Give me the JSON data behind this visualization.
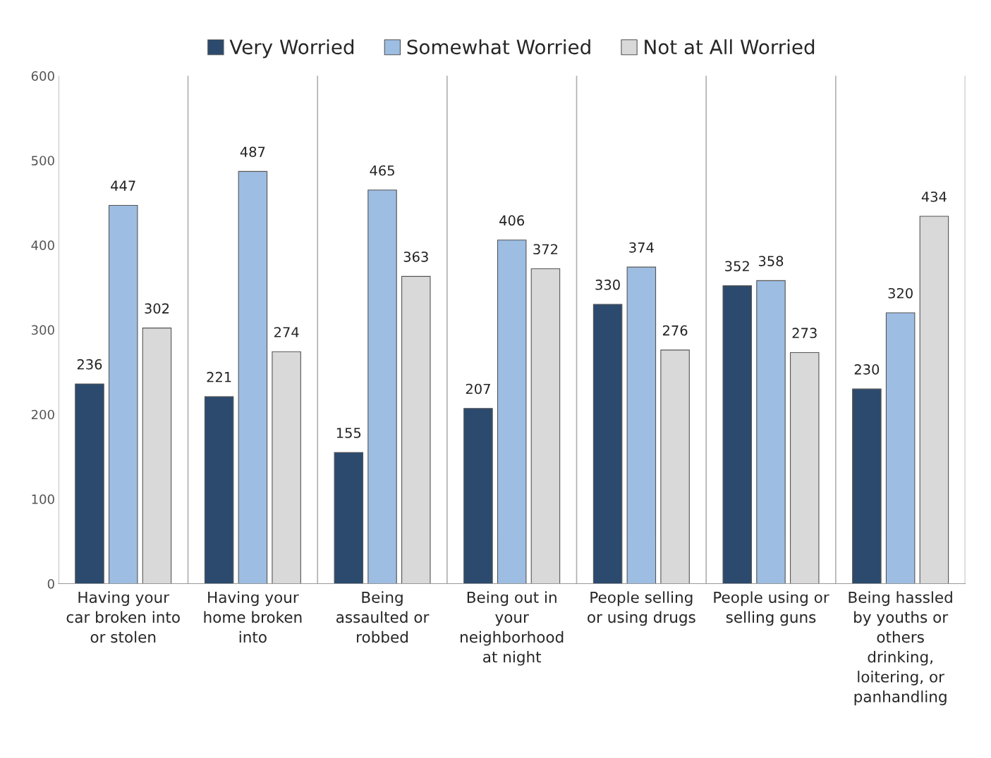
{
  "chart_data": {
    "type": "bar",
    "categories": [
      "Having your\ncar broken into\nor stolen",
      "Having your\nhome broken\ninto",
      "Being\nassaulted or\nrobbed",
      "Being out in\nyour\nneighborhood\nat night",
      "People selling\nor using drugs",
      "People using or\nselling guns",
      "Being hassled\nby youths or\nothers\ndrinking,\nloitering, or\npanhandling"
    ],
    "series": [
      {
        "name": "Very Worried",
        "color": "#2b4a6e",
        "values": [
          236,
          221,
          155,
          207,
          330,
          352,
          230
        ]
      },
      {
        "name": "Somewhat Worried",
        "color": "#9dbde2",
        "values": [
          447,
          487,
          465,
          406,
          374,
          358,
          320
        ]
      },
      {
        "name": "Not at All Worried",
        "color": "#d9d9d9",
        "values": [
          302,
          274,
          363,
          372,
          276,
          273,
          434
        ]
      }
    ],
    "ylim": [
      0,
      600
    ],
    "yticks": [
      0,
      100,
      200,
      300,
      400,
      500,
      600
    ],
    "data_labels": true,
    "grid": "x",
    "legend": "top"
  }
}
